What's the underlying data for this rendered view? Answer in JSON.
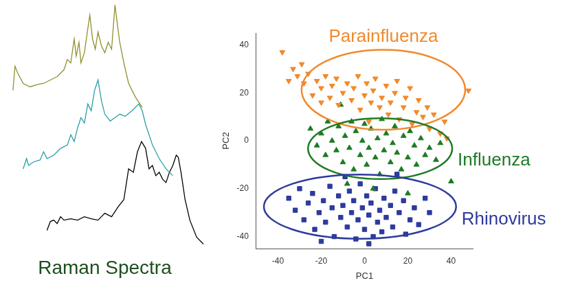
{
  "chart_data": [
    {
      "type": "line",
      "title": "Raman Spectra",
      "xlim": [
        0,
        300
      ],
      "ylim": [
        0,
        370
      ],
      "tick_labels": false,
      "grid": false,
      "series": [
        {
          "color": "#8f8f2e",
          "x": [
            15,
            18,
            22,
            30,
            40,
            50,
            60,
            70,
            80,
            90,
            95,
            100,
            105,
            108,
            112,
            115,
            120,
            125,
            128,
            132,
            136,
            140,
            145,
            150,
            155,
            160,
            165,
            168,
            172,
            178,
            185,
            195,
            205
          ],
          "values": [
            240,
            275,
            265,
            250,
            245,
            248,
            250,
            255,
            260,
            270,
            285,
            280,
            315,
            290,
            310,
            280,
            295,
            330,
            350,
            315,
            300,
            325,
            305,
            295,
            310,
            300,
            365,
            340,
            310,
            280,
            250,
            230,
            215
          ]
        },
        {
          "color": "#2a9fa6",
          "x": [
            30,
            35,
            38,
            45,
            55,
            60,
            65,
            75,
            85,
            95,
            100,
            105,
            110,
            115,
            120,
            125,
            130,
            135,
            140,
            145,
            150,
            158,
            165,
            172,
            180,
            190,
            200,
            205,
            210,
            220,
            230,
            240,
            250
          ],
          "values": [
            125,
            140,
            130,
            135,
            138,
            150,
            140,
            145,
            155,
            160,
            175,
            165,
            185,
            200,
            192,
            220,
            210,
            240,
            255,
            225,
            205,
            195,
            200,
            205,
            202,
            210,
            220,
            210,
            190,
            160,
            140,
            125,
            115
          ]
        },
        {
          "color": "#000000",
          "x": [
            65,
            70,
            75,
            80,
            85,
            90,
            100,
            110,
            120,
            130,
            140,
            150,
            160,
            170,
            178,
            185,
            192,
            198,
            204,
            210,
            215,
            220,
            225,
            230,
            235,
            240,
            245,
            250,
            255,
            258,
            262,
            268,
            275,
            285,
            295
          ],
          "values": [
            35,
            48,
            50,
            45,
            55,
            50,
            52,
            50,
            55,
            52,
            50,
            60,
            55,
            70,
            80,
            125,
            120,
            150,
            165,
            155,
            125,
            130,
            115,
            120,
            110,
            105,
            120,
            130,
            145,
            142,
            120,
            80,
            50,
            25,
            15
          ]
        }
      ]
    },
    {
      "type": "scatter",
      "x_label": "PC1",
      "y_label": "PC2",
      "xlim": [
        -50,
        50
      ],
      "ylim": [
        -45,
        45
      ],
      "xticks": [
        -40,
        -20,
        0,
        20,
        40
      ],
      "yticks": [
        -40,
        -20,
        0,
        20,
        40
      ],
      "grid": false,
      "series": [
        {
          "name": "Parainfluenza",
          "color": "#f08a2c",
          "marker": "triangle_down",
          "ellipse": {
            "center": [
              8.7,
              21.3
            ],
            "radius": [
              37.8,
              16.7
            ]
          },
          "x": [
            -38,
            -33,
            -31,
            -29,
            -28,
            -26,
            -24,
            -22,
            -20,
            -18,
            -16,
            -15,
            -13,
            -12,
            -10,
            -8,
            -6,
            -5,
            -3,
            -2,
            0,
            1,
            3,
            4,
            5,
            7,
            8,
            10,
            11,
            12,
            14,
            15,
            16,
            18,
            19,
            21,
            22,
            24,
            25,
            27,
            29,
            30,
            32,
            35,
            37,
            38,
            48,
            -35,
            -20,
            2
          ],
          "values": [
            37,
            30,
            27,
            32,
            24,
            28,
            19,
            25,
            22,
            27,
            18,
            23,
            26,
            15,
            20,
            24,
            17,
            22,
            27,
            13,
            19,
            24,
            16,
            21,
            26,
            14,
            18,
            23,
            11,
            16,
            20,
            25,
            9,
            14,
            18,
            22,
            7,
            12,
            17,
            10,
            14,
            5,
            11,
            3,
            8,
            1,
            21,
            25,
            16,
            8
          ]
        },
        {
          "name": "Influenza",
          "color": "#1e7b24",
          "marker": "triangle",
          "ellipse": {
            "center": [
              7.2,
              -3.3
            ],
            "radius": [
              33.3,
              12.7
            ]
          },
          "x": [
            -25,
            -22,
            -20,
            -18,
            -17,
            -15,
            -13,
            -12,
            -10,
            -9,
            -7,
            -6,
            -5,
            -4,
            -2,
            -1,
            0,
            1,
            2,
            3,
            5,
            6,
            7,
            8,
            9,
            10,
            12,
            13,
            14,
            15,
            17,
            18,
            20,
            21,
            23,
            24,
            26,
            28,
            30,
            33,
            35,
            40,
            -8,
            4,
            -11,
            20
          ],
          "values": [
            5,
            -2,
            3,
            -6,
            8,
            0,
            -4,
            6,
            -9,
            2,
            -3,
            8,
            -12,
            4,
            -6,
            0,
            7,
            -10,
            -3,
            5,
            -7,
            1,
            -14,
            9,
            -4,
            3,
            -9,
            -1,
            6,
            -5,
            -12,
            2,
            -7,
            4,
            -2,
            -10,
            1,
            -6,
            -3,
            -8,
            -1,
            -17,
            -18,
            -20,
            15,
            -22
          ]
        },
        {
          "name": "Rhinovirus",
          "color": "#2d3a9e",
          "marker": "square",
          "ellipse": {
            "center": [
              -2.1,
              -27.5
            ],
            "radius": [
              44.4,
              13.4
            ]
          },
          "x": [
            -35,
            -32,
            -30,
            -28,
            -26,
            -24,
            -23,
            -21,
            -19,
            -18,
            -16,
            -15,
            -14,
            -12,
            -11,
            -10,
            -8,
            -7,
            -6,
            -5,
            -4,
            -3,
            -2,
            -1,
            0,
            1,
            2,
            3,
            4,
            5,
            6,
            7,
            8,
            9,
            10,
            12,
            13,
            14,
            16,
            18,
            19,
            21,
            23,
            25,
            28,
            30,
            -20,
            -9,
            15,
            2
          ],
          "values": [
            -24,
            -29,
            -20,
            -33,
            -26,
            -22,
            -37,
            -30,
            -25,
            -34,
            -19,
            -28,
            -40,
            -23,
            -32,
            -27,
            -36,
            -21,
            -30,
            -25,
            -41,
            -33,
            -18,
            -28,
            -37,
            -23,
            -31,
            -26,
            -40,
            -20,
            -34,
            -29,
            -38,
            -24,
            -32,
            -27,
            -36,
            -21,
            -30,
            -25,
            -39,
            -33,
            -28,
            -35,
            -24,
            -30,
            -42,
            -15,
            -14,
            -43
          ]
        }
      ]
    }
  ]
}
